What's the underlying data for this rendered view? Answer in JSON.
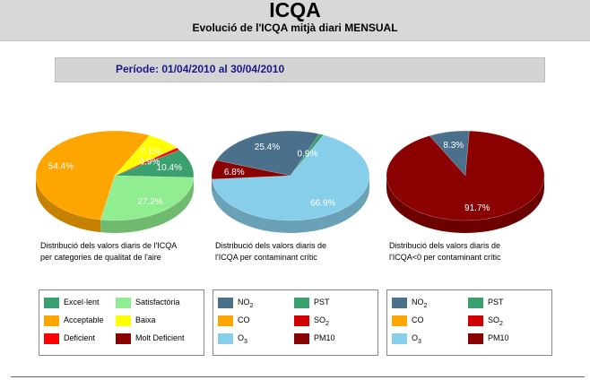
{
  "header": {
    "title": "ICQA",
    "subtitle": "Evolució de l'ICQA mitjà diari MENSUAL"
  },
  "period": "Període: 01/04/2010 al 30/04/2010",
  "colors": {
    "excellent": "#3aa06e",
    "satisfactory": "#90ee90",
    "acceptable": "#ffa500",
    "low": "#ffff00",
    "deficient": "#ff0000",
    "very_deficient": "#8b0000",
    "no2": "#4b708b",
    "co": "#ffa500",
    "o3": "#87ceeb",
    "pst": "#3aa06e",
    "so2": "#d00000",
    "pm10": "#8b0000"
  },
  "chart_data": [
    {
      "type": "pie",
      "caption": [
        "Distribució dels valors diaris de l'ICQA",
        "per categories de qualitat de l'aire"
      ],
      "slices": [
        {
          "label": "Excel·lent",
          "value": 10.4,
          "display": "10.4%",
          "color": "#3aa06e"
        },
        {
          "label": "Satisfactòria",
          "value": 27.2,
          "display": "27.2%",
          "color": "#90ee90"
        },
        {
          "label": "Acceptable",
          "value": 54.4,
          "display": "54.4%",
          "color": "#ffa500"
        },
        {
          "label": "Baixa",
          "value": 7.1,
          "display": "7.1%",
          "color": "#ffff00"
        },
        {
          "label": "Deficient",
          "value": 0.9,
          "display": "0.9%",
          "color": "#ff0000"
        },
        {
          "label": "Molt Deficient",
          "value": 0.0,
          "display": "",
          "color": "#8b0000"
        }
      ]
    },
    {
      "type": "pie",
      "caption": [
        "Distribució dels valors diaris de",
        "l'ICQA per contaminant crític"
      ],
      "slices": [
        {
          "label": "NO2",
          "value": 25.4,
          "display": "25.4%",
          "color": "#4b708b"
        },
        {
          "label": "PST",
          "value": 0.9,
          "display": "0.9%",
          "color": "#3aa06e"
        },
        {
          "label": "CO",
          "value": 0.0,
          "display": "",
          "color": "#ffa500"
        },
        {
          "label": "SO2",
          "value": 0.0,
          "display": "",
          "color": "#d00000"
        },
        {
          "label": "O3",
          "value": 66.9,
          "display": "66.9%",
          "color": "#87ceeb"
        },
        {
          "label": "PM10",
          "value": 6.8,
          "display": "6.8%",
          "color": "#8b0000"
        }
      ]
    },
    {
      "type": "pie",
      "caption": [
        "Distribució dels valors diaris de",
        "l'ICQA<0 per contaminant crític"
      ],
      "slices": [
        {
          "label": "NO2",
          "value": 8.3,
          "display": "8.3%",
          "color": "#4b708b"
        },
        {
          "label": "PM10",
          "value": 91.7,
          "display": "91.7%",
          "color": "#8b0000"
        }
      ]
    }
  ],
  "legends": [
    [
      {
        "label": "Excel·lent",
        "color": "#3aa06e"
      },
      {
        "label": "Satisfactòria",
        "color": "#90ee90"
      },
      {
        "label": "Acceptable",
        "color": "#ffa500"
      },
      {
        "label": "Baixa",
        "color": "#ffff00"
      },
      {
        "label": "Deficient",
        "color": "#ff0000"
      },
      {
        "label": "Molt Deficient",
        "color": "#8b0000"
      }
    ],
    [
      {
        "label": "NO",
        "sub": "2",
        "color": "#4b708b"
      },
      {
        "label": "PST",
        "sub": "",
        "color": "#3aa06e"
      },
      {
        "label": "CO",
        "sub": "",
        "color": "#ffa500"
      },
      {
        "label": "SO",
        "sub": "2",
        "color": "#d00000"
      },
      {
        "label": "O",
        "sub": "3",
        "color": "#87ceeb"
      },
      {
        "label": "PM10",
        "sub": "",
        "color": "#8b0000"
      }
    ],
    [
      {
        "label": "NO",
        "sub": "2",
        "color": "#4b708b"
      },
      {
        "label": "PST",
        "sub": "",
        "color": "#3aa06e"
      },
      {
        "label": "CO",
        "sub": "",
        "color": "#ffa500"
      },
      {
        "label": "SO",
        "sub": "2",
        "color": "#d00000"
      },
      {
        "label": "O",
        "sub": "3",
        "color": "#87ceeb"
      },
      {
        "label": "PM10",
        "sub": "",
        "color": "#8b0000"
      }
    ]
  ]
}
